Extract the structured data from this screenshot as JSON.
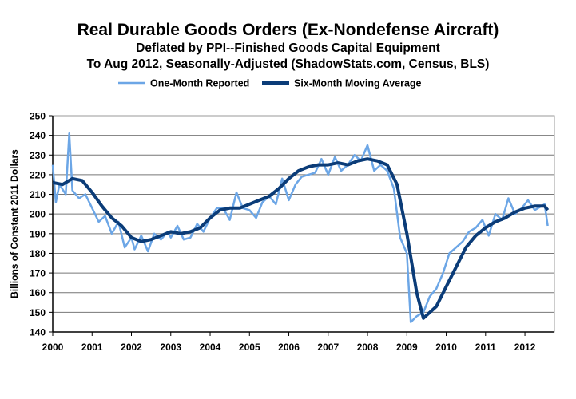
{
  "chart_data": {
    "type": "line",
    "title": "Real Durable Goods Orders (Ex-Nondefense Aircraft)",
    "subtitle_1": "Deflated by PPI--Finished Goods Capital Equipment",
    "subtitle_2": "To Aug 2012, Seasonally-Adjusted (ShadowStats.com, Census, BLS)",
    "xlabel": "",
    "ylabel": "Billions of Constant 2011 Dollars",
    "ylim": [
      140,
      250
    ],
    "xlim": [
      2000,
      2012.75
    ],
    "yticks": [
      "140",
      "150",
      "160",
      "170",
      "180",
      "190",
      "200",
      "210",
      "220",
      "230",
      "240",
      "250"
    ],
    "xticks": [
      "2000",
      "2001",
      "2002",
      "2003",
      "2004",
      "2005",
      "2006",
      "2007",
      "2008",
      "2009",
      "2010",
      "2011",
      "2012"
    ],
    "grid": true,
    "legend_position": "top-center",
    "series": [
      {
        "name": "One-Month Reported",
        "color": "#6ca6e6",
        "x": [
          2000.0,
          2000.08,
          2000.17,
          2000.33,
          2000.42,
          2000.5,
          2000.67,
          2000.83,
          2001.0,
          2001.17,
          2001.33,
          2001.5,
          2001.67,
          2001.83,
          2002.0,
          2002.08,
          2002.25,
          2002.42,
          2002.58,
          2002.75,
          2002.92,
          2003.0,
          2003.17,
          2003.33,
          2003.5,
          2003.67,
          2003.83,
          2004.0,
          2004.17,
          2004.33,
          2004.5,
          2004.67,
          2004.83,
          2005.0,
          2005.17,
          2005.33,
          2005.5,
          2005.67,
          2005.83,
          2006.0,
          2006.17,
          2006.33,
          2006.5,
          2006.67,
          2006.83,
          2007.0,
          2007.17,
          2007.33,
          2007.5,
          2007.67,
          2007.83,
          2008.0,
          2008.17,
          2008.33,
          2008.5,
          2008.67,
          2008.83,
          2009.0,
          2009.1,
          2009.25,
          2009.42,
          2009.58,
          2009.75,
          2009.92,
          2010.08,
          2010.25,
          2010.42,
          2010.58,
          2010.75,
          2010.92,
          2011.08,
          2011.25,
          2011.42,
          2011.58,
          2011.75,
          2011.92,
          2012.08,
          2012.25,
          2012.42,
          2012.5,
          2012.58
        ],
        "y": [
          225,
          206,
          215,
          210,
          241,
          212,
          208,
          210,
          203,
          196,
          199,
          190,
          196,
          183,
          188,
          182,
          189,
          181,
          190,
          187,
          191,
          188,
          194,
          187,
          188,
          195,
          191,
          198,
          203,
          203,
          197,
          211,
          203,
          202,
          198,
          206,
          209,
          205,
          218,
          207,
          215,
          219,
          220,
          221,
          228,
          220,
          229,
          222,
          225,
          230,
          227,
          235,
          222,
          225,
          222,
          213,
          188,
          180,
          145,
          148,
          150,
          158,
          162,
          170,
          180,
          183,
          186,
          191,
          193,
          197,
          189,
          200,
          197,
          208,
          200,
          203,
          207,
          202,
          204,
          205,
          194
        ]
      },
      {
        "name": "Six-Month Moving Average",
        "color": "#0b3c78",
        "x": [
          2000.0,
          2000.25,
          2000.5,
          2000.75,
          2001.0,
          2001.25,
          2001.5,
          2001.75,
          2002.0,
          2002.25,
          2002.5,
          2002.75,
          2003.0,
          2003.25,
          2003.5,
          2003.75,
          2004.0,
          2004.25,
          2004.5,
          2004.75,
          2005.0,
          2005.25,
          2005.5,
          2005.75,
          2006.0,
          2006.25,
          2006.5,
          2006.75,
          2007.0,
          2007.25,
          2007.5,
          2007.75,
          2008.0,
          2008.25,
          2008.5,
          2008.75,
          2009.0,
          2009.25,
          2009.42,
          2009.75,
          2010.0,
          2010.25,
          2010.5,
          2010.75,
          2011.0,
          2011.25,
          2011.5,
          2011.75,
          2012.0,
          2012.25,
          2012.5,
          2012.58
        ],
        "y": [
          216,
          215,
          218,
          217,
          211,
          204,
          198,
          194,
          188,
          186,
          187,
          189,
          191,
          190,
          191,
          193,
          198,
          202,
          203,
          203,
          205,
          207,
          209,
          213,
          218,
          222,
          224,
          225,
          225,
          226,
          225,
          227,
          228,
          227,
          225,
          215,
          190,
          160,
          147,
          153,
          163,
          173,
          183,
          189,
          193,
          196,
          198,
          201,
          203,
          204,
          204,
          202
        ]
      }
    ]
  }
}
